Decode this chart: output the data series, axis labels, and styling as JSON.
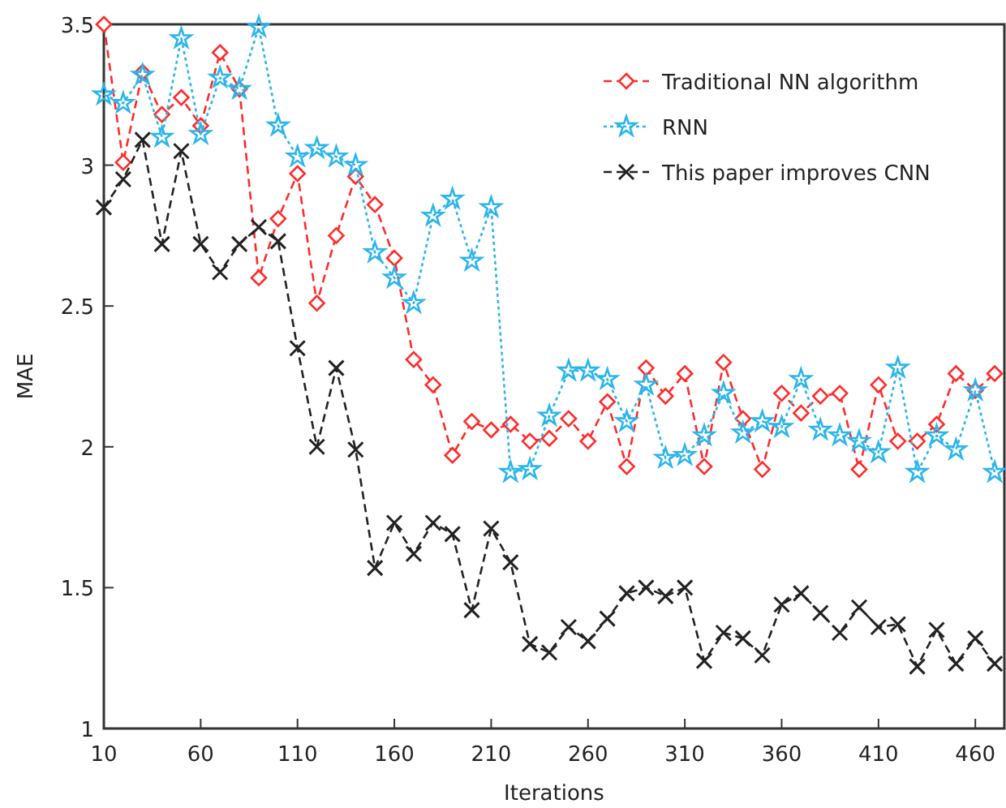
{
  "chart_data": {
    "type": "line",
    "xlabel": "Iterations",
    "ylabel": "MAE",
    "x": [
      10,
      20,
      30,
      40,
      50,
      60,
      70,
      80,
      90,
      100,
      110,
      120,
      130,
      140,
      150,
      160,
      170,
      180,
      190,
      200,
      210,
      220,
      230,
      240,
      250,
      260,
      270,
      280,
      290,
      300,
      310,
      320,
      330,
      340,
      350,
      360,
      370,
      380,
      390,
      400,
      410,
      420,
      430,
      440,
      450,
      460,
      470
    ],
    "series": [
      {
        "name": "Traditional NN algorithm",
        "color": "#ff2b2b",
        "marker": "diamond",
        "line_style": "dashed",
        "values": [
          3.5,
          3.01,
          3.33,
          3.18,
          3.24,
          3.14,
          3.4,
          3.27,
          2.6,
          2.81,
          2.97,
          2.51,
          2.75,
          2.96,
          2.86,
          2.67,
          2.31,
          2.22,
          1.97,
          2.09,
          2.06,
          2.08,
          2.02,
          2.03,
          2.1,
          2.02,
          2.16,
          1.93,
          2.28,
          2.18,
          2.26,
          1.93,
          2.3,
          2.1,
          1.92,
          2.19,
          2.12,
          2.18,
          2.19,
          1.92,
          2.22,
          2.02,
          2.02,
          2.08,
          2.26,
          2.2,
          2.26
        ]
      },
      {
        "name": "RNN",
        "color": "#2bb5ec",
        "marker": "star",
        "line_style": "dotted",
        "values": [
          3.25,
          3.22,
          3.32,
          3.1,
          3.45,
          3.11,
          3.31,
          3.27,
          3.49,
          3.14,
          3.03,
          3.06,
          3.03,
          3.0,
          2.69,
          2.6,
          2.51,
          2.82,
          2.88,
          2.66,
          2.85,
          1.91,
          1.92,
          2.11,
          2.27,
          2.27,
          2.24,
          2.09,
          2.22,
          1.96,
          1.97,
          2.04,
          2.19,
          2.05,
          2.09,
          2.07,
          2.24,
          2.06,
          2.04,
          2.02,
          1.98,
          2.28,
          1.91,
          2.04,
          1.99,
          2.2,
          1.91
        ]
      },
      {
        "name": "This paper improves CNN",
        "color": "#222222",
        "marker": "cross",
        "line_style": "dashed",
        "values": [
          2.85,
          2.95,
          3.09,
          2.72,
          3.05,
          2.72,
          2.62,
          2.72,
          2.78,
          2.73,
          2.35,
          2.0,
          2.28,
          1.99,
          1.57,
          1.73,
          1.62,
          1.73,
          1.69,
          1.42,
          1.71,
          1.59,
          1.3,
          1.27,
          1.36,
          1.31,
          1.39,
          1.48,
          1.5,
          1.47,
          1.5,
          1.24,
          1.34,
          1.32,
          1.26,
          1.44,
          1.48,
          1.41,
          1.34,
          1.43,
          1.36,
          1.37,
          1.22,
          1.35,
          1.23,
          1.32,
          1.23
        ]
      }
    ],
    "xlim": [
      10,
      475
    ],
    "xticks": [
      10,
      60,
      110,
      160,
      210,
      260,
      310,
      360,
      410,
      460
    ],
    "ylim": [
      1,
      3.5
    ],
    "yticks": [
      1,
      1.5,
      2,
      2.5,
      3,
      3.5
    ],
    "grid": false,
    "legend": "top right"
  }
}
